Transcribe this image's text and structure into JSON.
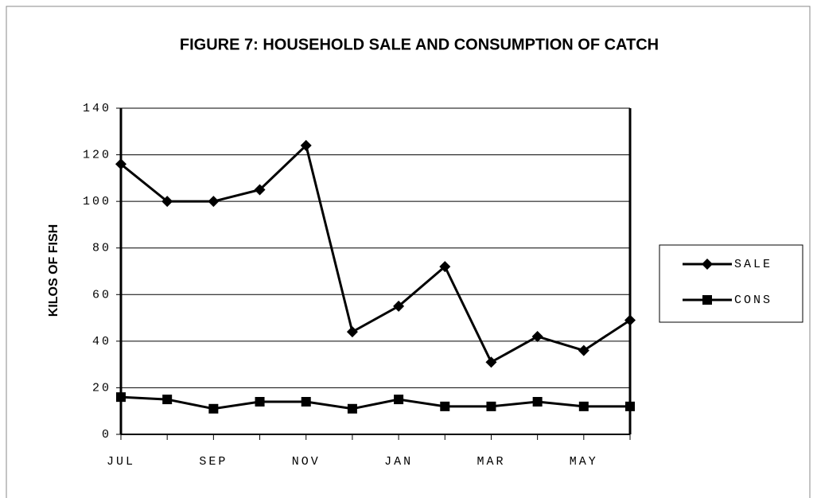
{
  "chart_data": {
    "type": "line",
    "title": "FIGURE 7: HOUSEHOLD SALE AND CONSUMPTION OF CATCH",
    "ylabel": "KILOS OF FISH",
    "categories": [
      "JUL",
      null,
      "SEP",
      null,
      "NOV",
      null,
      "JAN",
      null,
      "MAR",
      null,
      "MAY",
      null
    ],
    "series": [
      {
        "name": "SALE",
        "color": "#000000",
        "marker": "diamond",
        "values": [
          116,
          100,
          100,
          105,
          124,
          44,
          55,
          72,
          31,
          42,
          36,
          49
        ]
      },
      {
        "name": "CONS",
        "color": "#000000",
        "marker": "square",
        "values": [
          16,
          15,
          11,
          14,
          14,
          11,
          15,
          12,
          12,
          14,
          12,
          12
        ]
      }
    ],
    "ylim": [
      0,
      140
    ],
    "yticks": [
      0,
      20,
      40,
      60,
      80,
      100,
      120,
      140
    ],
    "grid": true,
    "legend": "right"
  }
}
